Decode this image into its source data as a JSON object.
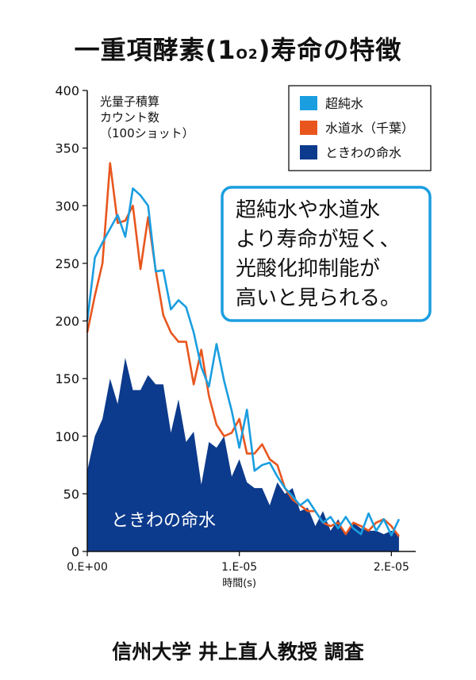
{
  "title_main": "一重項酵素",
  "title_open": "(1",
  "title_sub": "O2",
  "title_close": ")寿命の特徴",
  "credit": "信州大学 井上直人教授 調査",
  "colors": {
    "pure": "#1a9ee0",
    "tap": "#e8561e",
    "tokiwa": "#0c3a8c"
  },
  "chart_data": {
    "type": "area",
    "ylabel": [
      "光量子積算",
      "カウント数",
      "（100ショット）"
    ],
    "xlabel": "時間(s)",
    "ylim": [
      0,
      400
    ],
    "xlim": [
      0,
      2.16e-05
    ],
    "y_ticks": [
      0,
      50,
      100,
      150,
      200,
      250,
      300,
      350,
      400
    ],
    "x_ticks": [
      {
        "value": 0,
        "label": "0.E+00"
      },
      {
        "value": 1e-05,
        "label": "1.E-05"
      },
      {
        "value": 2e-05,
        "label": "2.E-05"
      }
    ],
    "legend_position": "top-right",
    "series": [
      {
        "name": "超純水",
        "type": "line",
        "x": [
          0,
          5e-07,
          1e-06,
          1.5e-06,
          2e-06,
          2.5e-06,
          3e-06,
          3.5e-06,
          4e-06,
          4.5e-06,
          5e-06,
          5.5e-06,
          6e-06,
          6.5e-06,
          7e-06,
          7.5e-06,
          8e-06,
          8.5e-06,
          9e-06,
          9.5e-06,
          1e-05,
          1.05e-05,
          1.1e-05,
          1.15e-05,
          1.2e-05,
          1.25e-05,
          1.3e-05,
          1.35e-05,
          1.4e-05,
          1.45e-05,
          1.5e-05,
          1.55e-05,
          1.6e-05,
          1.65e-05,
          1.7e-05,
          1.75e-05,
          1.8e-05,
          1.85e-05,
          1.9e-05,
          1.95e-05,
          2e-05,
          2.05e-05
        ],
        "y": [
          200,
          255,
          268,
          280,
          292,
          273,
          315,
          309,
          300,
          243,
          244,
          210,
          218,
          212,
          190,
          160,
          143,
          180,
          148,
          122,
          90,
          123,
          70,
          75,
          77,
          65,
          55,
          48,
          40,
          45,
          35,
          25,
          30,
          20,
          30,
          20,
          15,
          33,
          18,
          28,
          14,
          28
        ]
      },
      {
        "name": "水道水（千葉）",
        "type": "line",
        "x": [
          0,
          5e-07,
          1e-06,
          1.5e-06,
          2e-06,
          2.5e-06,
          3e-06,
          3.5e-06,
          4e-06,
          4.5e-06,
          5e-06,
          5.5e-06,
          6e-06,
          6.5e-06,
          7e-06,
          7.5e-06,
          8e-06,
          8.5e-06,
          9e-06,
          9.5e-06,
          1e-05,
          1.05e-05,
          1.1e-05,
          1.15e-05,
          1.2e-05,
          1.25e-05,
          1.3e-05,
          1.35e-05,
          1.4e-05,
          1.45e-05,
          1.5e-05,
          1.55e-05,
          1.6e-05,
          1.65e-05,
          1.7e-05,
          1.75e-05,
          1.8e-05,
          1.85e-05,
          1.9e-05,
          1.95e-05,
          2e-05,
          2.05e-05
        ],
        "y": [
          190,
          222,
          250,
          337,
          285,
          287,
          300,
          245,
          290,
          244,
          205,
          190,
          182,
          182,
          145,
          175,
          135,
          110,
          100,
          103,
          115,
          85,
          85,
          93,
          80,
          75,
          55,
          45,
          40,
          35,
          35,
          25,
          22,
          25,
          15,
          25,
          22,
          18,
          25,
          28,
          22,
          13
        ]
      },
      {
        "name": "ときわの命水",
        "type": "area",
        "x": [
          0,
          5e-07,
          1e-06,
          1.5e-06,
          2e-06,
          2.5e-06,
          3e-06,
          3.5e-06,
          4e-06,
          4.5e-06,
          5e-06,
          5.5e-06,
          6e-06,
          6.5e-06,
          7e-06,
          7.5e-06,
          8e-06,
          8.5e-06,
          9e-06,
          9.5e-06,
          1e-05,
          1.05e-05,
          1.1e-05,
          1.15e-05,
          1.2e-05,
          1.25e-05,
          1.3e-05,
          1.35e-05,
          1.4e-05,
          1.45e-05,
          1.5e-05,
          1.55e-05,
          1.6e-05,
          1.65e-05,
          1.7e-05,
          1.75e-05,
          1.8e-05,
          1.85e-05,
          1.9e-05,
          1.95e-05,
          2e-05,
          2.05e-05
        ],
        "y": [
          70,
          100,
          115,
          150,
          128,
          168,
          140,
          140,
          153,
          145,
          145,
          103,
          132,
          95,
          104,
          58,
          95,
          90,
          100,
          65,
          80,
          60,
          55,
          55,
          40,
          60,
          50,
          55,
          35,
          38,
          22,
          35,
          18,
          28,
          15,
          25,
          20,
          18,
          18,
          15,
          18,
          15
        ]
      }
    ],
    "annotation_box": [
      "超純水や水道水",
      "より寿命が短く、",
      "光酸化抑制能が",
      "高いと見られる。"
    ],
    "area_label": "ときわの命水"
  }
}
